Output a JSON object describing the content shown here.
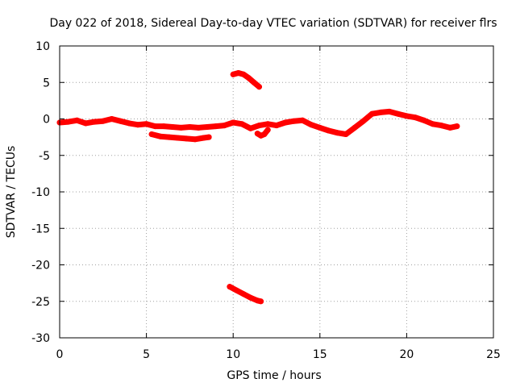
{
  "chart_data": {
    "type": "scatter",
    "title": "Day 022 of 2018, Sidereal Day-to-day VTEC variation (SDTVAR) for receiver flrs",
    "xlabel": "GPS time / hours",
    "ylabel": "SDTVAR / TECUs",
    "xlim": [
      0,
      25
    ],
    "ylim": [
      -30,
      10
    ],
    "xticks": [
      0,
      5,
      10,
      15,
      20,
      25
    ],
    "yticks": [
      -30,
      -25,
      -20,
      -15,
      -10,
      -5,
      0,
      5,
      10
    ],
    "xtick_labels": [
      "0",
      "5",
      "10",
      "15",
      "20",
      "25"
    ],
    "ytick_labels": [
      "-30",
      "-25",
      "-20",
      "-15",
      "-10",
      "-5",
      "0",
      "5",
      "10"
    ],
    "grid": true,
    "color": "#ff0000",
    "series": [
      {
        "name": "main-trace",
        "x": [
          0.0,
          0.5,
          1.0,
          1.5,
          2.0,
          2.5,
          3.0,
          3.5,
          4.0,
          4.5,
          5.0,
          5.5,
          6.0,
          6.5,
          7.0,
          7.5,
          8.0,
          8.5,
          9.0,
          9.5,
          10.0,
          10.5,
          11.0,
          11.5,
          12.0,
          12.5,
          13.0,
          13.5,
          14.0,
          14.5,
          15.0,
          15.5,
          16.0,
          16.5,
          17.0,
          17.5,
          18.0,
          18.5,
          19.0,
          19.5,
          20.0,
          20.5,
          21.0,
          21.5,
          22.0,
          22.5,
          22.9
        ],
        "y": [
          -0.5,
          -0.4,
          -0.2,
          -0.6,
          -0.4,
          -0.3,
          0.0,
          -0.3,
          -0.6,
          -0.8,
          -0.7,
          -1.0,
          -1.0,
          -1.1,
          -1.2,
          -1.1,
          -1.2,
          -1.1,
          -1.0,
          -0.9,
          -0.5,
          -0.7,
          -1.3,
          -0.9,
          -0.7,
          -0.9,
          -0.5,
          -0.3,
          -0.2,
          -0.8,
          -1.2,
          -1.6,
          -1.9,
          -2.1,
          -1.2,
          -0.3,
          0.7,
          0.9,
          1.0,
          0.7,
          0.4,
          0.2,
          -0.2,
          -0.7,
          -0.9,
          -1.2,
          -1.0
        ]
      },
      {
        "name": "lower-branch",
        "x": [
          5.3,
          5.8,
          6.3,
          6.8,
          7.3,
          7.8,
          8.3,
          8.6
        ],
        "y": [
          -2.1,
          -2.4,
          -2.5,
          -2.6,
          -2.7,
          -2.8,
          -2.6,
          -2.5
        ]
      },
      {
        "name": "dip-segment",
        "x": [
          11.4,
          11.6,
          11.8,
          12.0
        ],
        "y": [
          -2.0,
          -2.3,
          -2.1,
          -1.5
        ]
      },
      {
        "name": "upper-arc",
        "x": [
          10.0,
          10.3,
          10.6,
          10.9,
          11.2,
          11.5
        ],
        "y": [
          6.1,
          6.3,
          6.1,
          5.6,
          5.0,
          4.4
        ]
      },
      {
        "name": "lower-arc",
        "x": [
          9.8,
          10.2,
          10.6,
          11.0,
          11.4,
          11.6
        ],
        "y": [
          -23.0,
          -23.5,
          -24.0,
          -24.5,
          -24.9,
          -25.0
        ]
      }
    ]
  }
}
